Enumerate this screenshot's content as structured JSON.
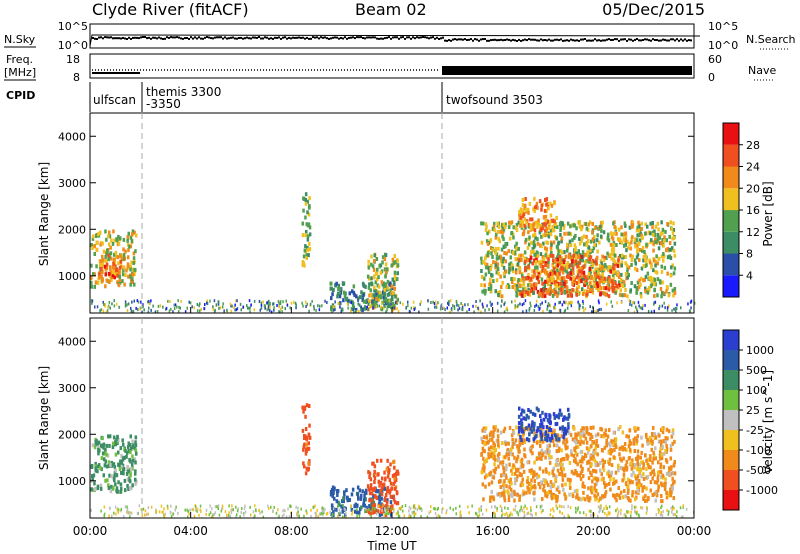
{
  "header": {
    "station": "Clyde River (fitACF)",
    "beam": "Beam 02",
    "date": "05/Dec/2015"
  },
  "strip_sky": {
    "left_label": "N.Sky",
    "left_ticks": [
      "10^5",
      "10^0"
    ],
    "right_label": "N.Search",
    "right_ticks": [
      "10^5",
      "10^0"
    ]
  },
  "strip_freq": {
    "left_label_1": "Freq.",
    "left_label_2": "[MHz]",
    "left_ticks": [
      "18",
      "8"
    ],
    "right_label": "Nave",
    "right_ticks": [
      "60",
      "0"
    ]
  },
  "cpid": {
    "label": "CPID",
    "entries": [
      {
        "name": "ulfscan",
        "start_h": 0.0
      },
      {
        "name": "themis 3300",
        "start_h": 2.0
      },
      {
        "name": "-3350",
        "start_h": 2.0
      },
      {
        "name": "twofsound 3503",
        "start_h": 14.0
      }
    ],
    "boundaries_h": [
      2.0,
      14.0
    ]
  },
  "colors": {
    "power": [
      "#1a1aff",
      "#2a4fa8",
      "#3c8c64",
      "#50a050",
      "#f0c020",
      "#f08a1a",
      "#f05020",
      "#e81010"
    ],
    "velocity": [
      "#2a3fd0",
      "#2a5aa8",
      "#3c8c64",
      "#70c040",
      "#c0c0c0",
      "#f0c020",
      "#f08a1a",
      "#f05020",
      "#e81010"
    ]
  },
  "chart_data": [
    {
      "type": "heatmap",
      "panel": "power",
      "x_range_h": [
        0,
        24
      ],
      "xticks": [
        "00:00",
        "04:00",
        "08:00",
        "12:00",
        "16:00",
        "20:00",
        "00:00"
      ],
      "ylabel": "Slant Range [km]",
      "ylim": [
        200,
        4500
      ],
      "yticks": [
        "1000",
        "2000",
        "3000",
        "4000"
      ],
      "colorbar_label": "Power [dB]",
      "colorbar_ticks": [
        "4",
        "8",
        "12",
        "16",
        "20",
        "24",
        "28"
      ],
      "colorbar_range": [
        0,
        32
      ],
      "regions": [
        {
          "t0": 0.0,
          "t1": 1.8,
          "r0": 800,
          "r1": 2000,
          "level": 22
        },
        {
          "t0": 0.3,
          "t1": 1.2,
          "r0": 1000,
          "r1": 1500,
          "level": 28
        },
        {
          "t0": 8.4,
          "t1": 8.7,
          "r0": 1200,
          "r1": 2800,
          "level": 18
        },
        {
          "t0": 9.5,
          "t1": 12.0,
          "r0": 300,
          "r1": 900,
          "level": 14
        },
        {
          "t0": 11.0,
          "t1": 12.2,
          "r0": 300,
          "r1": 1500,
          "level": 20
        },
        {
          "t0": 15.5,
          "t1": 23.2,
          "r0": 600,
          "r1": 2200,
          "level": 20
        },
        {
          "t0": 17.0,
          "t1": 21.0,
          "r0": 600,
          "r1": 1500,
          "level": 28
        },
        {
          "t0": 17.0,
          "t1": 18.5,
          "r0": 2000,
          "r1": 2700,
          "level": 26
        }
      ]
    },
    {
      "type": "heatmap",
      "panel": "velocity",
      "x_range_h": [
        0,
        24
      ],
      "xlabel": "Time UT",
      "xticks": [
        "00:00",
        "04:00",
        "08:00",
        "12:00",
        "16:00",
        "20:00",
        "00:00"
      ],
      "ylabel": "Slant Range [km]",
      "ylim": [
        200,
        4500
      ],
      "yticks": [
        "1000",
        "2000",
        "3000",
        "4000"
      ],
      "colorbar_label": "Velocity [m s^-1]",
      "colorbar_ticks": [
        "1000",
        "500",
        "100",
        "25",
        "-25",
        "-100",
        "-500",
        "-1000"
      ],
      "regions": [
        {
          "t0": 0.0,
          "t1": 1.8,
          "r0": 800,
          "r1": 2000,
          "value": 100
        },
        {
          "t0": 8.4,
          "t1": 8.7,
          "r0": 1200,
          "r1": 2800,
          "value": -500
        },
        {
          "t0": 9.5,
          "t1": 12.0,
          "r0": 300,
          "r1": 900,
          "value": 500
        },
        {
          "t0": 11.0,
          "t1": 12.2,
          "r0": 300,
          "r1": 1500,
          "value": -500
        },
        {
          "t0": 15.5,
          "t1": 23.2,
          "r0": 600,
          "r1": 2200,
          "value": -100
        },
        {
          "t0": 17.0,
          "t1": 19.0,
          "r0": 1900,
          "r1": 2600,
          "value": 800
        }
      ]
    }
  ]
}
